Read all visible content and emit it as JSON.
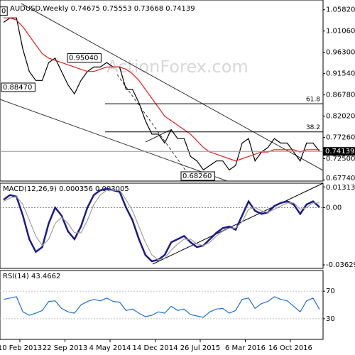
{
  "chart_data": [
    {
      "type": "line",
      "title": "AUDUSD,Weekly  0.74675 0.75553 0.73668 0.74139",
      "watermark": "ActionForex.com",
      "series": [
        {
          "color": "#000000",
          "values": [
            1.03,
            1.04,
            1.04,
            0.97,
            0.92,
            0.9,
            0.9,
            0.94,
            0.95,
            0.92,
            0.89,
            0.87,
            0.9,
            0.92,
            0.93,
            0.93,
            0.94,
            0.93,
            0.93,
            0.88,
            0.88,
            0.85,
            0.81,
            0.78,
            0.78,
            0.76,
            0.79,
            0.77,
            0.77,
            0.73,
            0.72,
            0.7,
            0.71,
            0.72,
            0.72,
            0.7,
            0.71,
            0.76,
            0.77,
            0.72,
            0.74,
            0.75,
            0.77,
            0.76,
            0.76,
            0.74,
            0.72,
            0.76,
            0.76,
            0.74139
          ]
        },
        {
          "color": "#e0201f",
          "values": [
            1.04,
            1.04,
            1.035,
            1.02,
            1.0,
            0.98,
            0.96,
            0.95,
            0.945,
            0.94,
            0.935,
            0.93,
            0.925,
            0.92,
            0.92,
            0.925,
            0.93,
            0.93,
            0.93,
            0.925,
            0.915,
            0.9,
            0.88,
            0.86,
            0.84,
            0.82,
            0.81,
            0.8,
            0.79,
            0.78,
            0.765,
            0.75,
            0.74,
            0.735,
            0.73,
            0.725,
            0.72,
            0.725,
            0.73,
            0.735,
            0.74,
            0.74,
            0.745,
            0.745,
            0.745,
            0.745,
            0.74,
            0.745,
            0.745,
            0.745
          ]
        }
      ],
      "ylim": [
        0.675,
        1.08
      ],
      "yticks": [
        {
          "value": 1.0582,
          "label": "1.05820"
        },
        {
          "value": 1.0106,
          "label": "1.01060"
        },
        {
          "value": 0.963,
          "label": "0.96300"
        },
        {
          "value": 0.9154,
          "label": "0.91540"
        },
        {
          "value": 0.8678,
          "label": "0.86780"
        },
        {
          "value": 0.8202,
          "label": "0.82020"
        },
        {
          "value": 0.7726,
          "label": "0.77260"
        },
        {
          "value": 0.725,
          "label": "0.72500"
        },
        {
          "value": 0.6774,
          "label": "0.67740"
        }
      ],
      "current_price": {
        "value": 0.74139,
        "label": "0.74139"
      },
      "fib_levels": [
        {
          "value": 0.848,
          "label": "61.8"
        },
        {
          "value": 0.785,
          "label": "38.2"
        }
      ],
      "price_labels": [
        {
          "value": 1.0582,
          "label": "0"
        },
        {
          "value": 0.9504,
          "label": "0.95040"
        },
        {
          "value": 0.8847,
          "label": "0.88470"
        },
        {
          "value": 0.6826,
          "label": "0.68260"
        }
      ],
      "xticks": [
        "10 Feb 2013",
        "22 Sep 2013",
        "4 May 2014",
        "14 Dec 2014",
        "26 Jul 2015",
        "6 Mar 2016",
        "16 Oct 2016"
      ]
    },
    {
      "type": "line",
      "title": "MACD(12,26,9) 0.000356 0.003005",
      "series": [
        {
          "color": "#1a1a8c",
          "values": [
            0.005,
            0.008,
            0.007,
            -0.005,
            -0.02,
            -0.028,
            -0.025,
            -0.01,
            0.0,
            -0.005,
            -0.015,
            -0.02,
            -0.012,
            0.0,
            0.008,
            0.011,
            0.012,
            0.011,
            0.01,
            0.0,
            -0.008,
            -0.02,
            -0.03,
            -0.034,
            -0.033,
            -0.03,
            -0.022,
            -0.02,
            -0.018,
            -0.022,
            -0.025,
            -0.024,
            -0.02,
            -0.016,
            -0.013,
            -0.012,
            -0.014,
            -0.005,
            0.004,
            -0.002,
            -0.004,
            -0.003,
            0.001,
            0.003,
            0.004,
            0.002,
            -0.004,
            0.002,
            0.004,
            0.000356
          ]
        },
        {
          "color": "#a0a0a0",
          "values": [
            0.004,
            0.006,
            0.007,
            0.002,
            -0.008,
            -0.018,
            -0.024,
            -0.02,
            -0.01,
            -0.006,
            -0.01,
            -0.016,
            -0.016,
            -0.008,
            0.002,
            0.008,
            0.011,
            0.011,
            0.011,
            0.005,
            -0.002,
            -0.012,
            -0.022,
            -0.03,
            -0.033,
            -0.032,
            -0.027,
            -0.023,
            -0.02,
            -0.02,
            -0.023,
            -0.024,
            -0.022,
            -0.018,
            -0.015,
            -0.013,
            -0.013,
            -0.009,
            -0.001,
            0.0,
            -0.002,
            -0.003,
            -0.001,
            0.001,
            0.003,
            0.003,
            -0.001,
            0.0,
            0.003,
            0.003005
          ]
        }
      ],
      "ylim": [
        -0.0385,
        0.0155
      ],
      "yticks": [
        0.013131,
        {
          "value": 0,
          "label": "0.00"
        },
        -0.03629
      ]
    },
    {
      "type": "line",
      "title": "RSI(14) 43.4662",
      "series": [
        {
          "color": "#1e6fd9",
          "values": [
            58,
            60,
            62,
            40,
            35,
            38,
            42,
            55,
            56,
            45,
            40,
            38,
            50,
            55,
            58,
            56,
            60,
            55,
            54,
            42,
            44,
            38,
            33,
            35,
            40,
            38,
            48,
            42,
            44,
            36,
            34,
            32,
            40,
            44,
            45,
            38,
            42,
            58,
            60,
            45,
            52,
            55,
            62,
            58,
            56,
            48,
            40,
            56,
            60,
            43.4662
          ]
        }
      ],
      "ylim": [
        0,
        100
      ],
      "yticks": [
        70,
        30
      ]
    }
  ]
}
